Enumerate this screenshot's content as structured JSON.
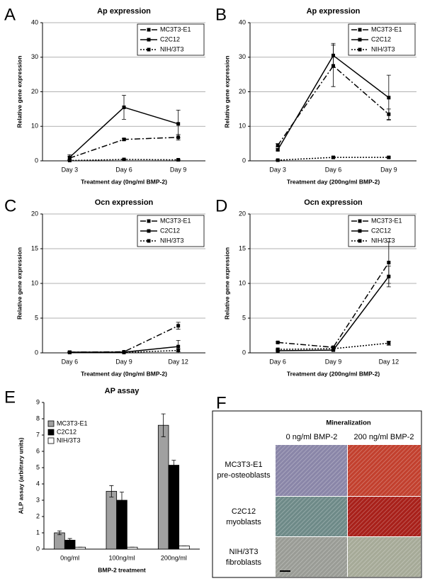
{
  "chart_data": [
    {
      "type": "line",
      "label": "A",
      "title": "Ap expression",
      "x_label": "Treatment day (0ng/ml BMP-2)",
      "y_label": "Relative gene expression",
      "categories": [
        "Day 3",
        "Day 6",
        "Day 9"
      ],
      "ylim": [
        0,
        40
      ],
      "yticks": [
        0,
        10,
        20,
        30,
        40
      ],
      "grid": true,
      "series": [
        {
          "name": "MC3T3-E1",
          "color": "#000000",
          "style": "dashdot",
          "values": [
            0.8,
            6.2,
            6.8
          ],
          "errors": [
            0.5,
            0.3,
            0.8
          ]
        },
        {
          "name": "C2C12",
          "color": "#000000",
          "style": "solid",
          "values": [
            1.0,
            15.5,
            10.7
          ],
          "errors": [
            0.8,
            3.5,
            4.0
          ]
        },
        {
          "name": "NIH/3T3",
          "color": "#000000",
          "style": "dotted",
          "values": [
            0.1,
            0.4,
            0.3
          ],
          "errors": [
            0.1,
            0.1,
            0.1
          ]
        }
      ]
    },
    {
      "type": "line",
      "label": "B",
      "title": "Ap expression",
      "x_label": "Treatment day (200ng/ml BMP-2)",
      "y_label": "Relative gene expression",
      "categories": [
        "Day 3",
        "Day 6",
        "Day 9"
      ],
      "ylim": [
        0,
        40
      ],
      "yticks": [
        0,
        10,
        20,
        30,
        40
      ],
      "grid": true,
      "series": [
        {
          "name": "MC3T3-E1",
          "color": "#000000",
          "style": "dashdot",
          "values": [
            4.5,
            27.5,
            13.5
          ],
          "errors": [
            0.5,
            6.0,
            1.5
          ]
        },
        {
          "name": "C2C12",
          "color": "#000000",
          "style": "solid",
          "values": [
            3.2,
            30.5,
            18.3
          ],
          "errors": [
            0.3,
            3.5,
            6.5
          ]
        },
        {
          "name": "NIH/3T3",
          "color": "#000000",
          "style": "dotted",
          "values": [
            0.2,
            1.0,
            1.0
          ],
          "errors": [
            0.1,
            0.2,
            0.2
          ]
        }
      ]
    },
    {
      "type": "line",
      "label": "C",
      "title": "Ocn expression",
      "x_label": "Treatment day (0ng/ml BMP-2)",
      "y_label": "Relative gene expression",
      "categories": [
        "Day 6",
        "Day 9",
        "Day 12"
      ],
      "ylim": [
        0,
        20
      ],
      "yticks": [
        0,
        5,
        10,
        15,
        20
      ],
      "grid": true,
      "series": [
        {
          "name": "MC3T3-E1",
          "color": "#000000",
          "style": "dashdot",
          "values": [
            0.1,
            0.15,
            3.9
          ],
          "errors": [
            0.05,
            0.05,
            0.5
          ]
        },
        {
          "name": "C2C12",
          "color": "#000000",
          "style": "solid",
          "values": [
            0.1,
            0.1,
            0.9
          ],
          "errors": [
            0.05,
            0.05,
            0.9
          ]
        },
        {
          "name": "NIH/3T3",
          "color": "#000000",
          "style": "dotted",
          "values": [
            0.05,
            0.05,
            0.35
          ],
          "errors": [
            0.02,
            0.02,
            0.2
          ]
        }
      ]
    },
    {
      "type": "line",
      "label": "D",
      "title": "Ocn expression",
      "x_label": "Treatment day (200ng/ml BMP-2)",
      "y_label": "Relative gene expression",
      "categories": [
        "Day 6",
        "Day 9",
        "Day 12"
      ],
      "ylim": [
        0,
        20
      ],
      "yticks": [
        0,
        5,
        10,
        15,
        20
      ],
      "grid": true,
      "series": [
        {
          "name": "MC3T3-E1",
          "color": "#000000",
          "style": "dashdot",
          "values": [
            1.5,
            0.8,
            13.0
          ],
          "errors": [
            0.1,
            0.1,
            3.0
          ]
        },
        {
          "name": "C2C12",
          "color": "#000000",
          "style": "solid",
          "values": [
            0.3,
            0.4,
            11.0
          ],
          "errors": [
            0.1,
            0.1,
            1.5
          ]
        },
        {
          "name": "NIH/3T3",
          "color": "#000000",
          "style": "dotted",
          "values": [
            0.5,
            0.6,
            1.4
          ],
          "errors": [
            0.1,
            0.1,
            0.3
          ]
        }
      ]
    },
    {
      "type": "bar",
      "label": "E",
      "title": "AP assay",
      "x_label": "BMP-2 treatment",
      "y_label": "ALP assay (arbitrary units)",
      "categories": [
        "0ng/ml",
        "100ng/ml",
        "200ng/ml"
      ],
      "ylim": [
        0,
        9
      ],
      "yticks": [
        0,
        1,
        2,
        3,
        4,
        5,
        6,
        7,
        8,
        9
      ],
      "grid": false,
      "series": [
        {
          "name": "MC3T3-E1",
          "color": "#a0a0a0",
          "values": [
            1.0,
            3.55,
            7.6
          ],
          "errors": [
            0.12,
            0.35,
            0.7
          ]
        },
        {
          "name": "C2C12",
          "color": "#000000",
          "values": [
            0.55,
            3.0,
            5.15
          ],
          "errors": [
            0.1,
            0.5,
            0.3
          ]
        },
        {
          "name": "NIH/3T3",
          "color": "#ffffff",
          "values": [
            0.12,
            0.12,
            0.2
          ],
          "errors": [
            0,
            0,
            0
          ]
        }
      ]
    }
  ],
  "mineralization": {
    "label": "F",
    "title": "Mineralization",
    "columns": [
      "0 ng/ml BMP-2",
      "200 ng/ml BMP-2"
    ],
    "rows": [
      [
        "MC3T3-E1",
        "pre-osteoblasts"
      ],
      [
        "C2C12",
        "myoblasts"
      ],
      [
        "NIH/3T3",
        "fibroblasts"
      ]
    ]
  }
}
